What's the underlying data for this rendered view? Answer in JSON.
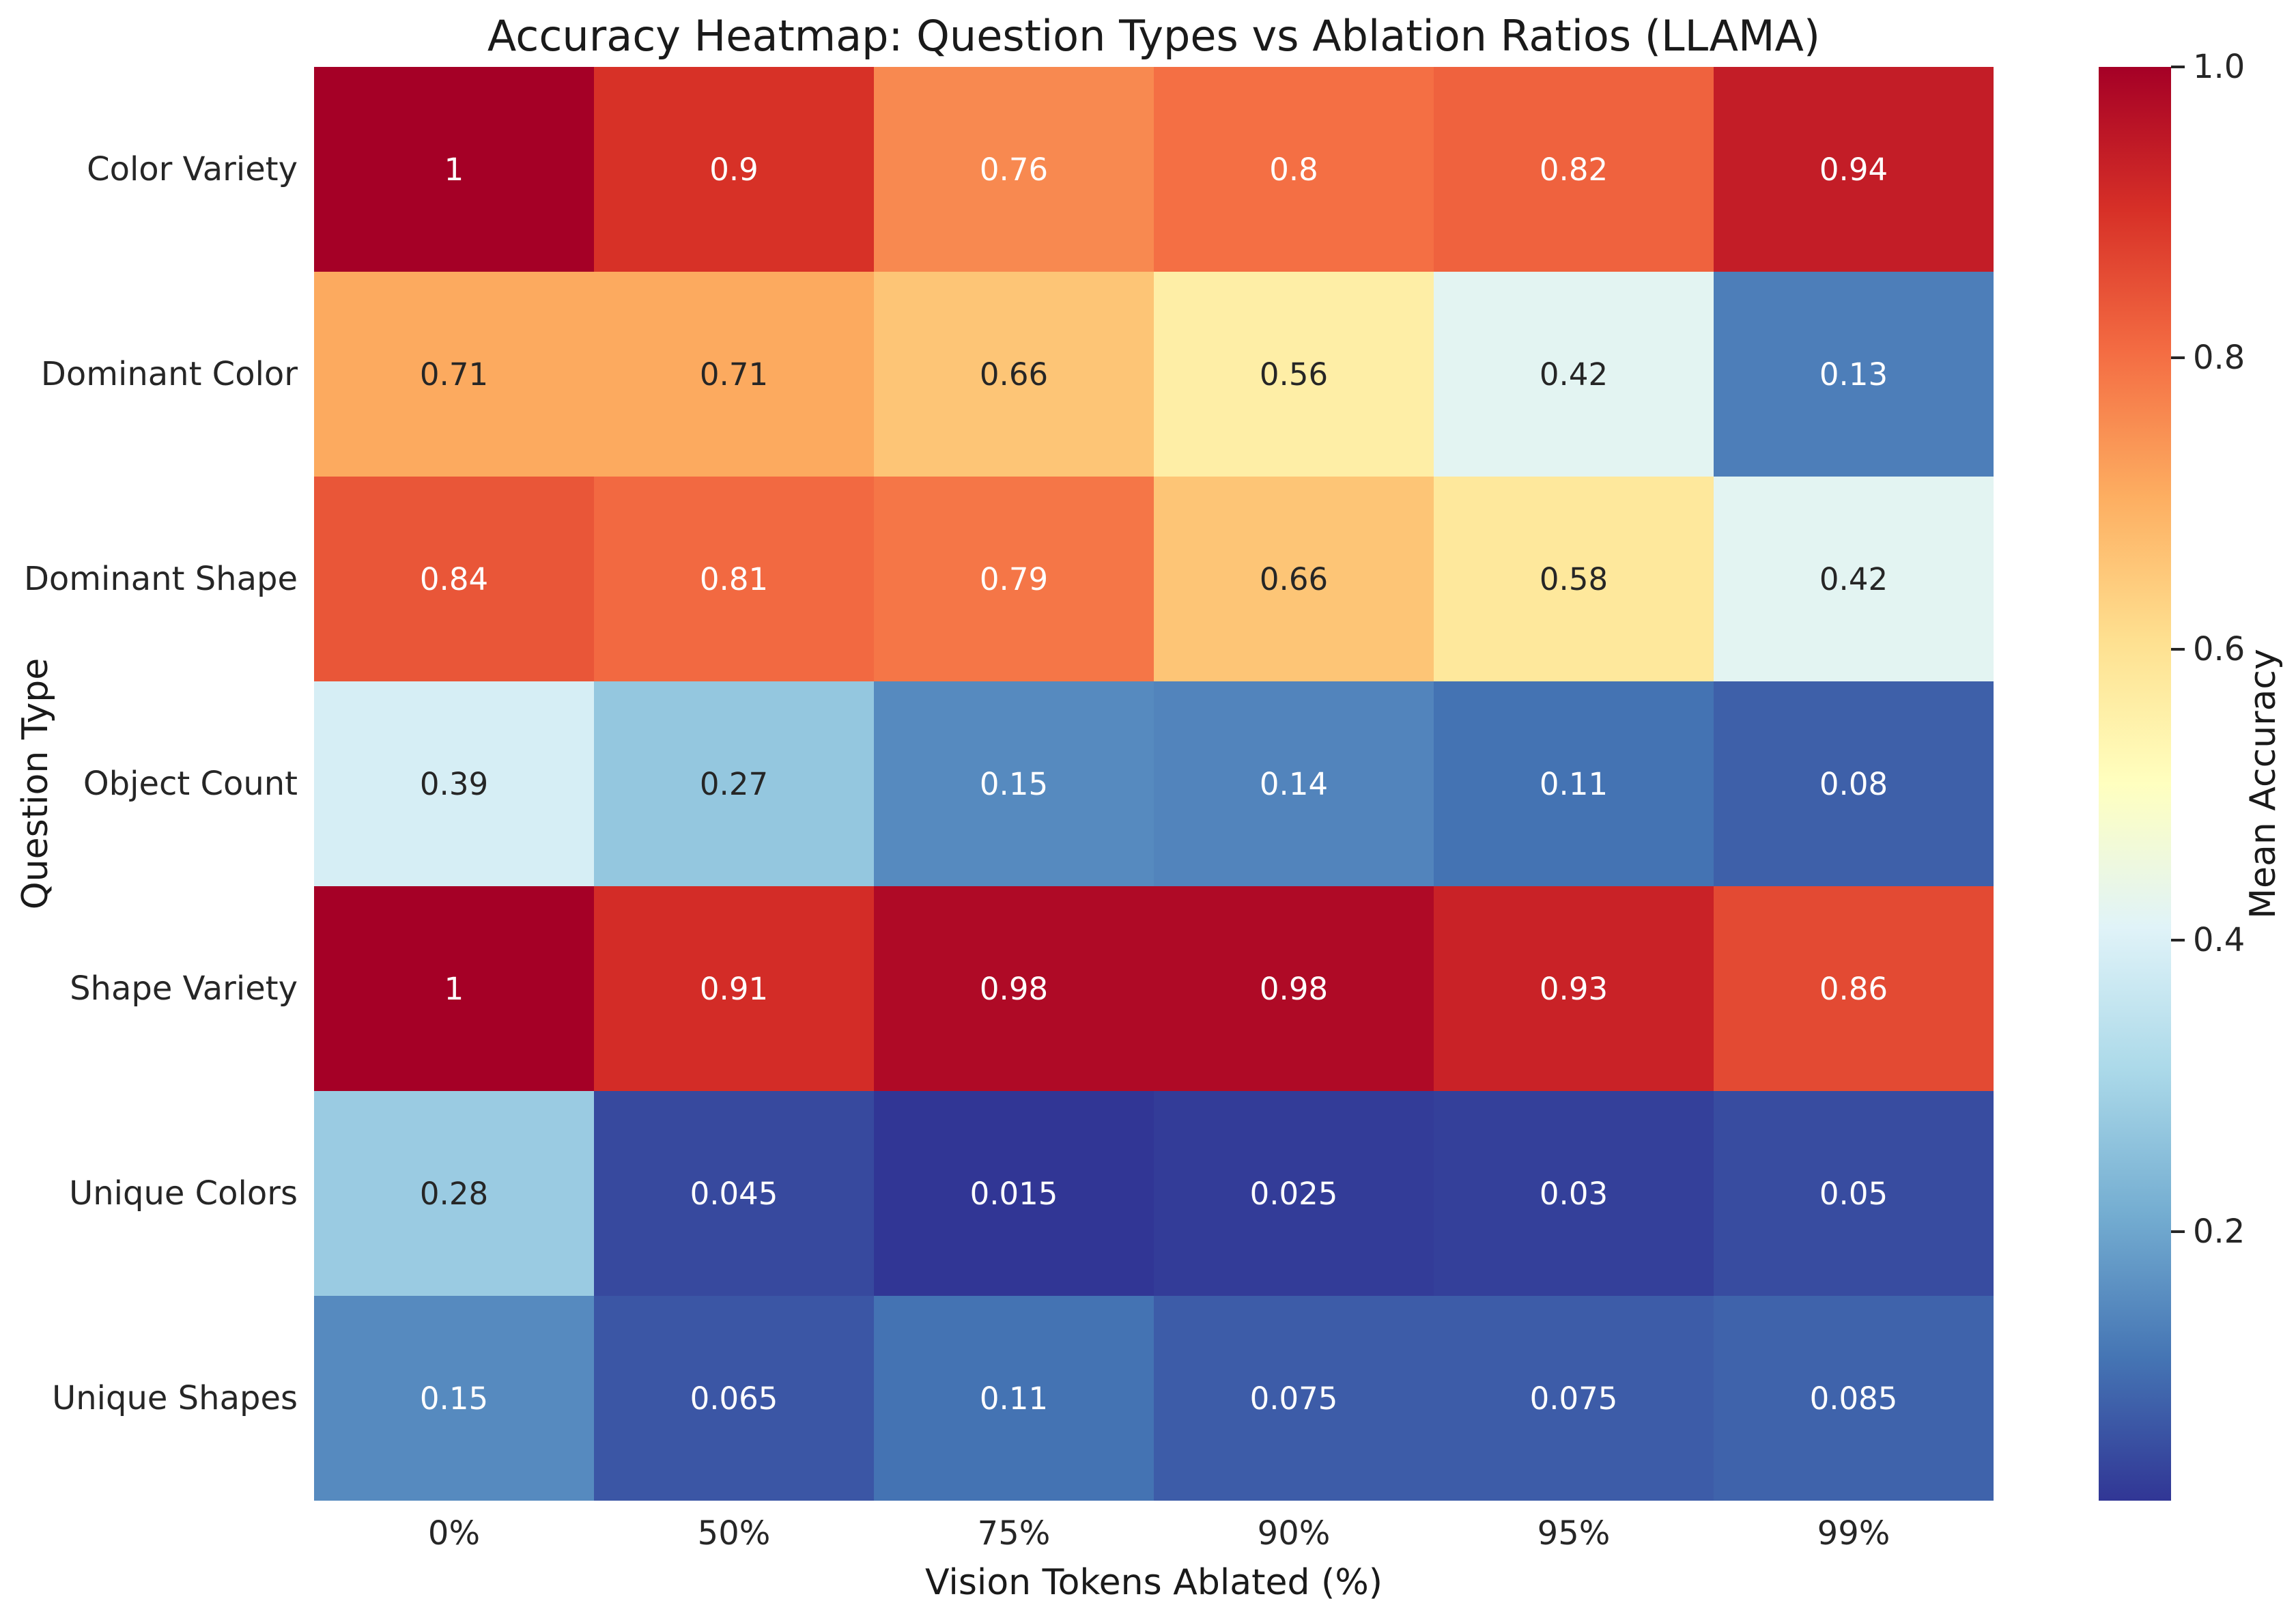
{
  "chart_data": {
    "type": "heatmap",
    "title": "Accuracy Heatmap: Question Types vs Ablation Ratios (LLAMA)",
    "xlabel": "Vision Tokens Ablated (%)",
    "ylabel": "Question Type",
    "x_categories": [
      "0%",
      "50%",
      "75%",
      "90%",
      "95%",
      "99%"
    ],
    "y_categories": [
      "Color Variety",
      "Dominant Color",
      "Dominant Shape",
      "Object Count",
      "Shape Variety",
      "Unique Colors",
      "Unique Shapes"
    ],
    "values": [
      [
        1,
        0.9,
        0.76,
        0.8,
        0.82,
        0.94
      ],
      [
        0.71,
        0.71,
        0.66,
        0.56,
        0.42,
        0.13
      ],
      [
        0.84,
        0.81,
        0.79,
        0.66,
        0.58,
        0.42
      ],
      [
        0.39,
        0.27,
        0.15,
        0.14,
        0.11,
        0.08
      ],
      [
        1,
        0.91,
        0.98,
        0.98,
        0.93,
        0.86
      ],
      [
        0.28,
        0.045,
        0.015,
        0.025,
        0.03,
        0.05
      ],
      [
        0.15,
        0.065,
        0.11,
        0.075,
        0.075,
        0.085
      ]
    ],
    "labels": [
      [
        "1",
        "0.9",
        "0.76",
        "0.8",
        "0.82",
        "0.94"
      ],
      [
        "0.71",
        "0.71",
        "0.66",
        "0.56",
        "0.42",
        "0.13"
      ],
      [
        "0.84",
        "0.81",
        "0.79",
        "0.66",
        "0.58",
        "0.42"
      ],
      [
        "0.39",
        "0.27",
        "0.15",
        "0.14",
        "0.11",
        "0.08"
      ],
      [
        "1",
        "0.91",
        "0.98",
        "0.98",
        "0.93",
        "0.86"
      ],
      [
        "0.28",
        "0.045",
        "0.015",
        "0.025",
        "0.03",
        "0.05"
      ],
      [
        "0.15",
        "0.065",
        "0.11",
        "0.075",
        "0.075",
        "0.085"
      ]
    ],
    "colorbar": {
      "label": "Mean Accuracy",
      "vmin": 0.015,
      "vmax": 1.0,
      "tick_values": [
        0.2,
        0.4,
        0.6,
        0.8,
        1.0
      ],
      "tick_labels": [
        "0.2",
        "0.4",
        "0.6",
        "0.8",
        "1.0"
      ]
    },
    "colormap": {
      "name": "RdYlBu_r",
      "stops": [
        "#313695",
        "#4575b4",
        "#74add1",
        "#abd9e9",
        "#e0f3f8",
        "#ffffbf",
        "#fee090",
        "#fdae61",
        "#f46d43",
        "#d73027",
        "#a50026"
      ]
    },
    "annotation_colors": {
      "dark": "#262626",
      "light": "#ffffff"
    },
    "layout_hints": {
      "grid": "off",
      "legend": "colorbar-right",
      "cell_borders": "none"
    }
  }
}
